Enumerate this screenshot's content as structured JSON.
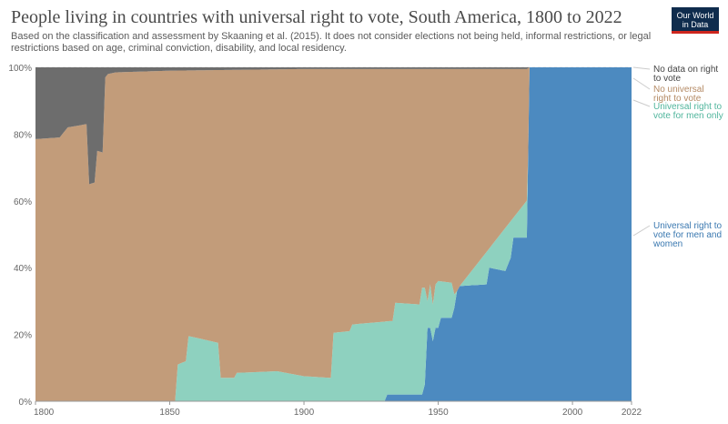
{
  "header": {
    "title": "People living in countries with universal right to vote, South America, 1800 to 2022",
    "subtitle": "Based on the classification and assessment by Skaaning et al. (2015). It does not consider elections not being held, informal restrictions, or legal restrictions based on age, criminal conviction, disability, and local residency.",
    "logo_line1": "Our World",
    "logo_line2": "in Data",
    "logo_color": "#0f2c4d",
    "logo_accent": "#ce261e"
  },
  "chart_data": {
    "type": "area",
    "stacked": true,
    "normalized": true,
    "title": "People living in countries with universal right to vote, South America, 1800 to 2022",
    "xlim": [
      1800,
      2022
    ],
    "ylim": [
      0,
      100
    ],
    "x_ticks": [
      1800,
      1850,
      1900,
      1950,
      2000,
      2022
    ],
    "y_ticks": [
      "0%",
      "20%",
      "40%",
      "60%",
      "80%",
      "100%"
    ],
    "y_tick_values": [
      0,
      20,
      40,
      60,
      80,
      100
    ],
    "legend_position": "right",
    "series": [
      {
        "name": "Universal right to vote for men and women",
        "label_lines": [
          "Universal right to",
          "vote for men and",
          "women"
        ],
        "color": "#4c8ac0",
        "points": [
          [
            1800,
            0
          ],
          [
            1929,
            0
          ],
          [
            1930,
            0
          ],
          [
            1931,
            2
          ],
          [
            1944,
            2
          ],
          [
            1945,
            5
          ],
          [
            1946,
            22
          ],
          [
            1947,
            22
          ],
          [
            1948,
            18
          ],
          [
            1949,
            22
          ],
          [
            1950,
            22
          ],
          [
            1951,
            25
          ],
          [
            1955,
            25
          ],
          [
            1956,
            28
          ],
          [
            1957,
            33
          ],
          [
            1958,
            34.5
          ],
          [
            1968,
            35
          ],
          [
            1969,
            40
          ],
          [
            1975,
            39
          ],
          [
            1977,
            43
          ],
          [
            1978,
            49
          ],
          [
            1983,
            49
          ],
          [
            1984,
            100
          ],
          [
            2022,
            100
          ]
        ]
      },
      {
        "name": "Universal right to vote for men only",
        "label_lines": [
          "Universal right to",
          "vote for men only"
        ],
        "color": "#8ed1bf",
        "points": [
          [
            1800,
            0
          ],
          [
            1852,
            0
          ],
          [
            1853,
            11
          ],
          [
            1856,
            12
          ],
          [
            1857,
            19.5
          ],
          [
            1860,
            19
          ],
          [
            1868,
            17.5
          ],
          [
            1869,
            7
          ],
          [
            1874,
            7
          ],
          [
            1875,
            8.5
          ],
          [
            1890,
            9
          ],
          [
            1900,
            7.5
          ],
          [
            1910,
            7
          ],
          [
            1911,
            20.5
          ],
          [
            1917,
            21
          ],
          [
            1918,
            23
          ],
          [
            1932,
            24
          ],
          [
            1933,
            24
          ],
          [
            1934,
            29.5
          ],
          [
            1943,
            29
          ],
          [
            1944,
            34
          ],
          [
            1945,
            34
          ],
          [
            1946,
            30
          ],
          [
            1947,
            35
          ],
          [
            1948,
            29
          ],
          [
            1949,
            35
          ],
          [
            1950,
            36
          ],
          [
            1955,
            35.5
          ],
          [
            1956,
            32
          ],
          [
            1957,
            33
          ],
          [
            1958,
            34.5
          ],
          [
            2022,
            100
          ]
        ]
      },
      {
        "name": "No universal right to vote",
        "label_lines": [
          "No universal",
          "right to vote"
        ],
        "color": "#c29c7a",
        "points": [
          [
            1800,
            78.5
          ],
          [
            1809,
            79
          ],
          [
            1810,
            80
          ],
          [
            1812,
            82
          ],
          [
            1819,
            83
          ],
          [
            1820,
            65
          ],
          [
            1822,
            65.5
          ],
          [
            1823,
            75
          ],
          [
            1825,
            74.5
          ],
          [
            1826,
            97
          ],
          [
            1827,
            98
          ],
          [
            1830,
            98.5
          ],
          [
            1850,
            99
          ],
          [
            1900,
            99.5
          ],
          [
            1983,
            99.5
          ],
          [
            1984,
            100
          ],
          [
            2022,
            100
          ]
        ]
      },
      {
        "name": "No data on right to vote",
        "label_lines": [
          "No data on right",
          "to vote"
        ],
        "color": "#6d6d6d",
        "points": [
          [
            1800,
            100
          ],
          [
            2022,
            100
          ]
        ]
      }
    ]
  }
}
